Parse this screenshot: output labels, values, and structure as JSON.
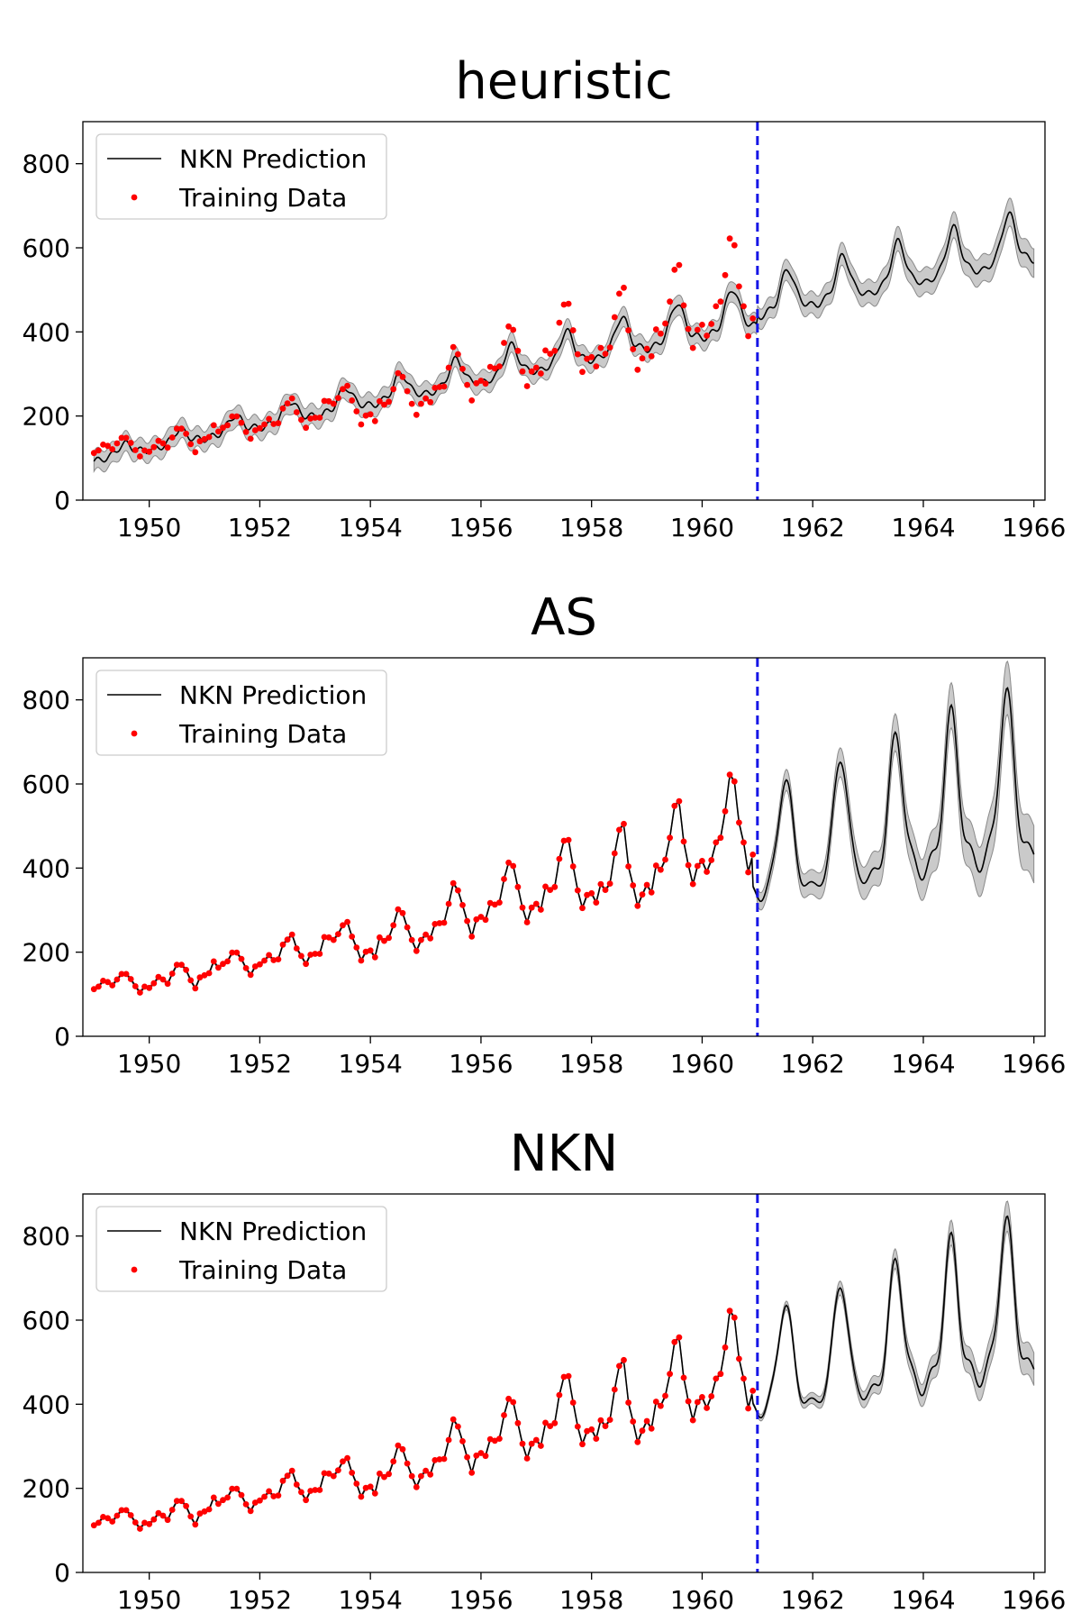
{
  "chart_data": [
    {
      "type": "line",
      "title": "heuristic",
      "xlim": [
        1948.8,
        1966.2
      ],
      "ylim": [
        0,
        900
      ],
      "xticks": [
        "1950",
        "1952",
        "1954",
        "1956",
        "1958",
        "1960",
        "1962",
        "1964",
        "1966"
      ],
      "yticks": [
        "0",
        "200",
        "400",
        "600",
        "800"
      ],
      "split_x": 1961.0,
      "legend": {
        "placement": "top-left",
        "entries": [
          "NKN Prediction",
          "Training Data"
        ]
      },
      "model": {
        "type": "heuristic",
        "base": 95,
        "scale": 1.0,
        "growth": 29,
        "amp_scale": 0.85,
        "peak_shift": 0.08,
        "phase": -0.05,
        "smoothness": 1.0,
        "band": 24,
        "band_growth": 2,
        "future_base_boost": 20,
        "future_amp_boost": 0.9
      },
      "training_data": "airline_passengers_1949_1960"
    },
    {
      "type": "line",
      "title": "AS",
      "xlim": [
        1948.8,
        1966.2
      ],
      "ylim": [
        0,
        900
      ],
      "xticks": [
        "1950",
        "1952",
        "1954",
        "1956",
        "1958",
        "1960",
        "1962",
        "1964",
        "1966"
      ],
      "yticks": [
        "0",
        "200",
        "400",
        "600",
        "800"
      ],
      "split_x": 1961.0,
      "legend": {
        "placement": "top-left",
        "entries": [
          "NKN Prediction",
          "Training Data"
        ]
      },
      "model": {
        "type": "exact",
        "base": 360,
        "amp": 260,
        "growth": 30,
        "band": 40,
        "band_growth": 6,
        "peak_shift": 0.55
      },
      "training_data": "airline_passengers_1949_1960"
    },
    {
      "type": "line",
      "title": "NKN",
      "xlim": [
        1948.8,
        1966.2
      ],
      "ylim": [
        0,
        900
      ],
      "xticks": [
        "1950",
        "1952",
        "1954",
        "1956",
        "1958",
        "1960",
        "1962",
        "1964",
        "1966"
      ],
      "yticks": [
        "0",
        "200",
        "400",
        "600",
        "800"
      ],
      "split_x": 1961.0,
      "legend": {
        "placement": "top-left",
        "entries": [
          "NKN Prediction",
          "Training Data"
        ]
      },
      "model": {
        "type": "exact",
        "base": 400,
        "amp": 240,
        "growth": 30,
        "band": 14,
        "band_growth": 4,
        "peak_shift": 0.58
      },
      "training_data": "airline_passengers_1949_1960"
    }
  ],
  "airline_passengers_1949_1960": [
    112,
    118,
    132,
    129,
    121,
    135,
    148,
    148,
    136,
    119,
    104,
    118,
    115,
    126,
    141,
    135,
    125,
    149,
    170,
    170,
    158,
    133,
    114,
    140,
    145,
    150,
    178,
    163,
    172,
    178,
    199,
    199,
    184,
    162,
    146,
    166,
    171,
    180,
    193,
    181,
    183,
    218,
    230,
    242,
    209,
    191,
    172,
    194,
    196,
    196,
    236,
    235,
    229,
    243,
    264,
    272,
    237,
    211,
    180,
    201,
    204,
    188,
    235,
    227,
    234,
    264,
    302,
    293,
    259,
    229,
    203,
    229,
    242,
    233,
    267,
    269,
    270,
    315,
    364,
    347,
    312,
    274,
    237,
    278,
    284,
    277,
    317,
    313,
    318,
    374,
    413,
    405,
    355,
    306,
    271,
    306,
    315,
    301,
    356,
    348,
    355,
    422,
    465,
    467,
    404,
    347,
    305,
    336,
    340,
    318,
    362,
    348,
    363,
    435,
    491,
    505,
    404,
    359,
    310,
    337,
    360,
    342,
    406,
    396,
    420,
    472,
    548,
    559,
    463,
    407,
    362,
    405,
    417,
    391,
    419,
    461,
    472,
    535,
    622,
    606,
    508,
    461,
    390,
    432
  ],
  "colors": {
    "prediction": "#000000",
    "band": "#c4c4c4",
    "training": "#ff0000",
    "split": "#1515e6"
  }
}
